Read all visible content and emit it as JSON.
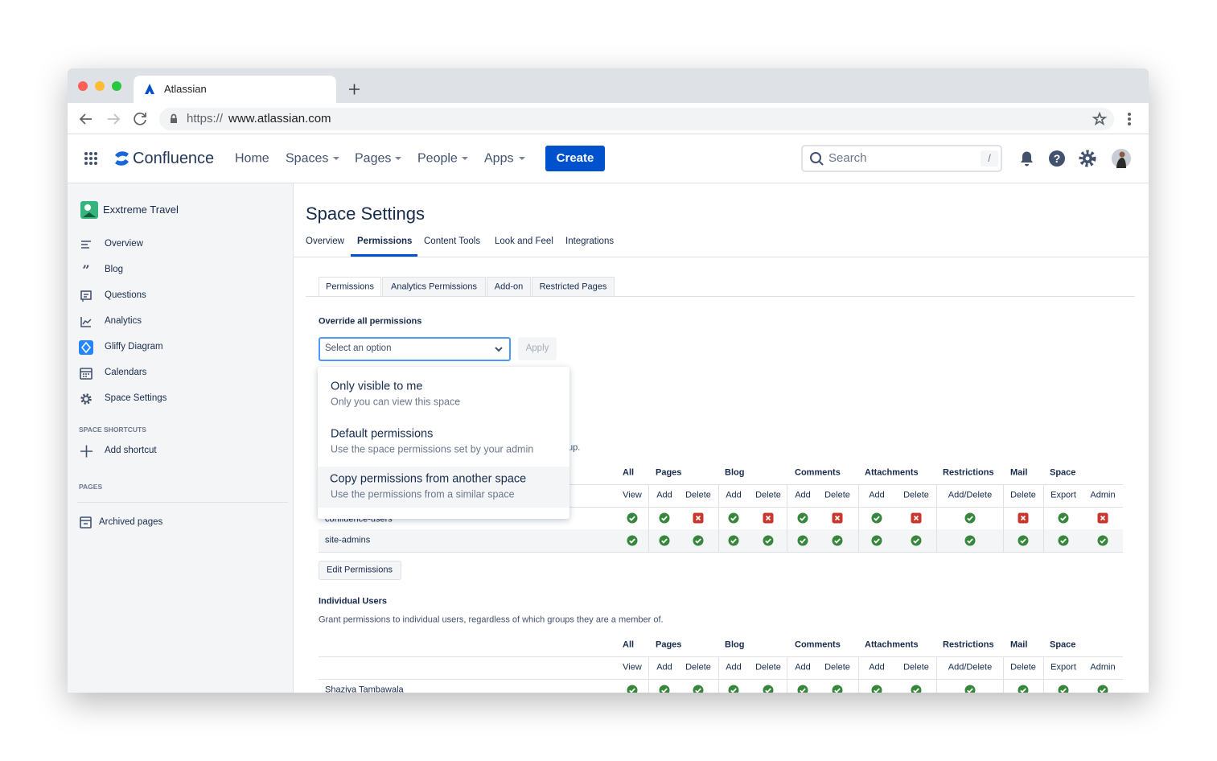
{
  "browser": {
    "tab_title": "Atlassian",
    "url_scheme": "https://",
    "url_host": "www.atlassian.com"
  },
  "header": {
    "product": "Confluence",
    "nav": [
      "Home",
      "Spaces",
      "Pages",
      "People",
      "Apps"
    ],
    "create": "Create",
    "search": "Search",
    "search_shortcut": "/"
  },
  "sidebar": {
    "space": "Exxtreme Travel",
    "items": [
      "Overview",
      "Blog",
      "Questions",
      "Analytics",
      "Gliffy Diagram",
      "Calendars",
      "Space Settings"
    ],
    "shortcuts_heading": "SPACE SHORTCUTS",
    "add_shortcut": "Add shortcut",
    "pages_heading": "PAGES",
    "archived": "Archived pages"
  },
  "main": {
    "title": "Space Settings",
    "tabs": [
      "Overview",
      "Permissions",
      "Content Tools",
      "Look and Feel",
      "Integrations"
    ],
    "subtabs": [
      "Permissions",
      "Analytics Permissions",
      "Add-on",
      "Restricted Pages"
    ],
    "override_label": "Override all permissions",
    "select_placeholder": "Select an option",
    "apply": "Apply",
    "options": [
      {
        "title": "Only visible to me",
        "description": "Only you can view this space"
      },
      {
        "title": "Default permissions",
        "description": "Use the space permissions set by your admin"
      },
      {
        "title": "Copy permissions from another space",
        "description": "Use the permissions from a similar space"
      }
    ],
    "obscured_text": "up.",
    "permission_columns": {
      "groups": [
        {
          "name": "All",
          "actions": [
            "View"
          ]
        },
        {
          "name": "Pages",
          "actions": [
            "Add",
            "Delete"
          ]
        },
        {
          "name": "Blog",
          "actions": [
            "Add",
            "Delete"
          ]
        },
        {
          "name": "Comments",
          "actions": [
            "Add",
            "Delete"
          ]
        },
        {
          "name": "Attachments",
          "actions": [
            "Add",
            "Delete"
          ]
        },
        {
          "name": "Restrictions",
          "actions": [
            "Add/Delete"
          ]
        },
        {
          "name": "Mail",
          "actions": [
            "Delete"
          ]
        },
        {
          "name": "Space",
          "actions": [
            "Export",
            "Admin"
          ]
        }
      ]
    },
    "groups_table": {
      "rows": [
        {
          "name": "confluence-users",
          "granted": [
            true,
            true,
            false,
            true,
            false,
            true,
            false,
            true,
            false,
            true,
            false,
            true,
            false
          ]
        },
        {
          "name": "site-admins",
          "granted": [
            true,
            true,
            true,
            true,
            true,
            true,
            true,
            true,
            true,
            true,
            true,
            true,
            true
          ]
        }
      ]
    },
    "edit_button": "Edit Permissions",
    "individual_heading": "Individual Users",
    "individual_description": "Grant permissions to individual users, regardless of which groups they are a member of.",
    "users_table": {
      "rows": [
        {
          "name": "Shaziya Tambawala",
          "granted": [
            true,
            true,
            true,
            true,
            true,
            true,
            true,
            true,
            true,
            true,
            true,
            true,
            true
          ]
        }
      ]
    }
  }
}
